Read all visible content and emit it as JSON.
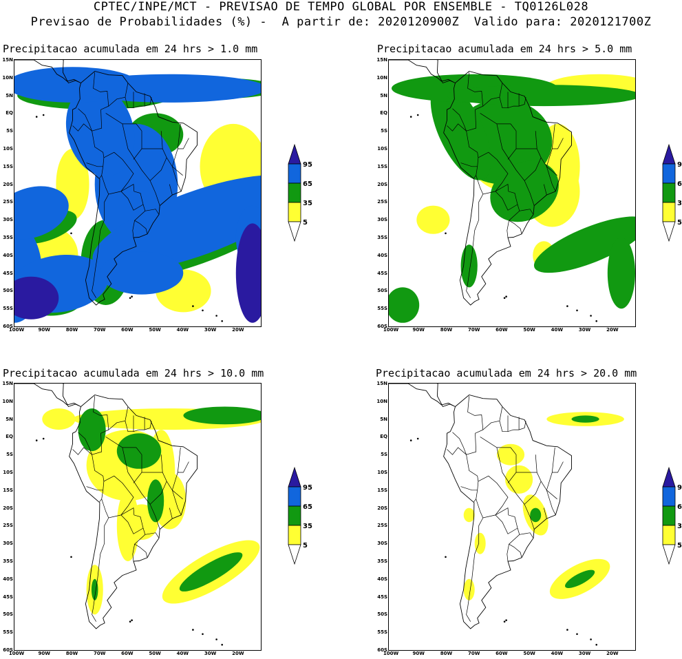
{
  "header": {
    "line1": "CPTEC/INPE/MCT - PREVISAO DE TEMPO GLOBAL POR ENSEMBLE - TQ0126L028",
    "line2": "Previsao de Probabilidades (%) -  A partir de: 2020120900Z  Valido para: 2020121700Z"
  },
  "panels": [
    {
      "title": "Precipitacao acumulada em 24 hrs > 1.0 mm"
    },
    {
      "title": "Precipitacao acumulada em 24 hrs > 5.0 mm"
    },
    {
      "title": "Precipitacao acumulada em 24 hrs > 10.0 mm"
    },
    {
      "title": "Precipitacao acumulada em 24 hrs > 20.0 mm"
    }
  ],
  "lat_labels": [
    "15N",
    "10N",
    "5N",
    "EQ",
    "5S",
    "10S",
    "15S",
    "20S",
    "25S",
    "30S",
    "35S",
    "40S",
    "45S",
    "50S",
    "55S",
    "60S"
  ],
  "lon_labels": [
    "100W",
    "90W",
    "80W",
    "70W",
    "60W",
    "50W",
    "40W",
    "30W",
    "20W"
  ],
  "legend": {
    "levels": [
      "95",
      "65",
      "35",
      "5"
    ],
    "colors": {
      "c5": "#ffff33",
      "c35": "#119911",
      "c65": "#1166dd",
      "c95": "#2a1aa0"
    }
  }
}
